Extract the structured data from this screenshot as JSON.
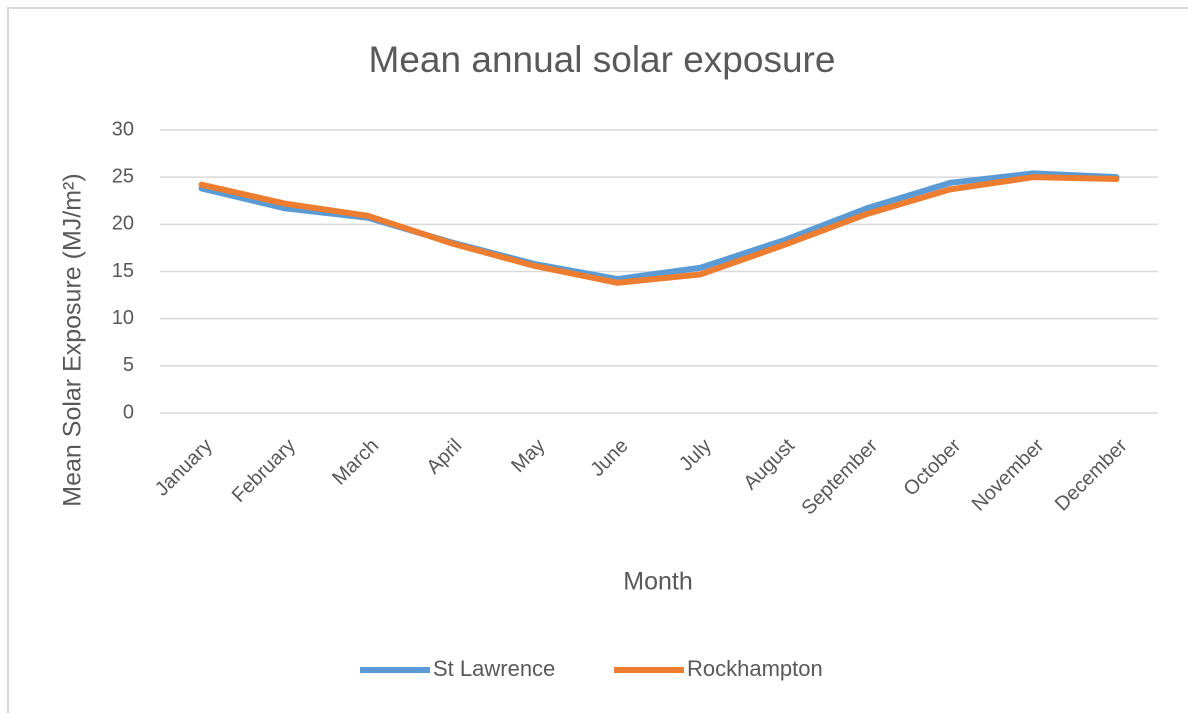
{
  "chart_data": {
    "type": "line",
    "title": "Mean annual solar exposure",
    "x_label": "Month",
    "y_label": "Mean Solar Exposure (MJ/m²)",
    "categories": [
      "January",
      "February",
      "March",
      "April",
      "May",
      "June",
      "July",
      "August",
      "September",
      "October",
      "November",
      "December"
    ],
    "series": [
      {
        "name": "St Lawrence",
        "color": "#5b9bd5",
        "values": [
          23.8,
          21.7,
          20.7,
          18.1,
          15.8,
          14.2,
          15.4,
          18.3,
          21.7,
          24.4,
          25.4,
          25.0
        ]
      },
      {
        "name": "Rockhampton",
        "color": "#ed7d31",
        "values": [
          24.2,
          22.2,
          20.9,
          18.0,
          15.6,
          13.8,
          14.7,
          17.8,
          21.1,
          23.7,
          25.0,
          24.8
        ]
      }
    ],
    "ylim": [
      0,
      30
    ],
    "yticks": [
      0,
      5,
      10,
      15,
      20,
      25,
      30
    ],
    "grid": true,
    "legend": "bottom"
  }
}
